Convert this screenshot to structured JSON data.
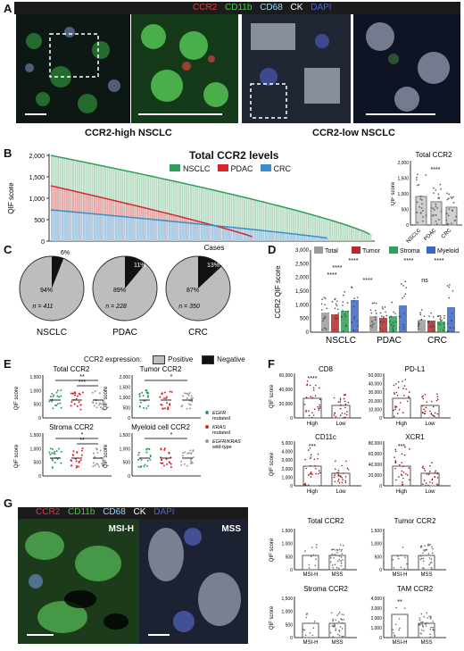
{
  "panels": {
    "A": "A",
    "B": "B",
    "C": "C",
    "D": "D",
    "E": "E",
    "F": "F",
    "G": "G"
  },
  "stainLegend": [
    {
      "label": "CCR2",
      "color": "#e23b3b"
    },
    {
      "label": "CD11b",
      "color": "#3fd23f"
    },
    {
      "label": "CD68",
      "color": "#9cd7f5"
    },
    {
      "label": "CK",
      "color": "#ffffff"
    },
    {
      "label": "DAPI",
      "color": "#4a63e8"
    }
  ],
  "panelA": {
    "left_caption": "CCR2-high NSCLC",
    "right_caption": "CCR2-low NSCLC"
  },
  "panelB": {
    "title": "Total CCR2 levels",
    "ylabel": "QIF score",
    "xlabel": "Cases",
    "yticks": [
      "2,000",
      "1,500",
      "1,000",
      "500",
      "0"
    ],
    "legend": [
      {
        "label": "NSCLC",
        "color": "#2e9f57"
      },
      {
        "label": "PDAC",
        "color": "#d7262b"
      },
      {
        "label": "CRC",
        "color": "#3a8ec9"
      }
    ],
    "inset": {
      "title": "Total CCR2",
      "ylabel": "QIF score",
      "yticks": [
        "2,000",
        "1,500",
        "1,000",
        "500",
        "0"
      ],
      "categories": [
        "NSCLC",
        "PDAC",
        "CRC"
      ],
      "sig": "****"
    }
  },
  "panelC": {
    "pies": [
      {
        "name": "NSCLC",
        "n": "n = 411",
        "pos": "94%",
        "neg": "6%",
        "neg_frac": 0.06
      },
      {
        "name": "PDAC",
        "n": "n = 228",
        "pos": "89%",
        "neg": "11%",
        "neg_frac": 0.11
      },
      {
        "name": "CRC",
        "n": "n = 350",
        "pos": "87%",
        "neg": "13%",
        "neg_frac": 0.13
      }
    ],
    "legend_title": "CCR2 expression:",
    "legend": [
      {
        "label": "Positive",
        "color": "#bdbdbd"
      },
      {
        "label": "Negative",
        "color": "#111111"
      }
    ]
  },
  "panelD": {
    "ylabel": "CCR2 QIF score",
    "yticks": [
      "3,000",
      "2,500",
      "2,000",
      "1,500",
      "1,000",
      "500",
      "0"
    ],
    "legend": [
      {
        "label": "Total",
        "color": "#9a9a9a"
      },
      {
        "label": "Tumor",
        "color": "#b52a2a"
      },
      {
        "label": "Stroma",
        "color": "#2e9f57"
      },
      {
        "label": "Myeloid",
        "color": "#3a66c9"
      }
    ],
    "groups": [
      "NSCLC",
      "PDAC",
      "CRC"
    ],
    "sig": [
      "****",
      "****",
      "****",
      "****",
      "****",
      "ns",
      "****"
    ]
  },
  "panelE": {
    "ylabel": "QIF score",
    "plots": [
      {
        "title": "Total CCR2",
        "sig": [
          "**",
          "***"
        ]
      },
      {
        "title": "Tumor CCR2",
        "sig": [
          "*"
        ]
      },
      {
        "title": "Stroma CCR2",
        "sig": [
          "*",
          "**"
        ]
      },
      {
        "title": "Myeloid cell CCR2",
        "sig": [
          "*"
        ]
      }
    ],
    "yticks_a": [
      "1,500",
      "1,000",
      "500",
      "0"
    ],
    "yticks_b": [
      "2,000",
      "1,500",
      "1,000",
      "500",
      "0"
    ],
    "legend": [
      {
        "label": "EGFR mutated",
        "color": "#2e9f57"
      },
      {
        "label": "KRAS mutated",
        "color": "#d7262b"
      },
      {
        "label": "EGFR/KRAS wild-type",
        "color": "#9a9a9a"
      }
    ]
  },
  "panelF": {
    "ylabel": "QIF score",
    "categories": [
      "High",
      "Low"
    ],
    "plots": [
      {
        "title": "CD8",
        "yticks": [
          "60,000",
          "40,000",
          "20,000",
          "0"
        ],
        "sig": "****"
      },
      {
        "title": "PD-L1",
        "yticks": [
          "50,000",
          "40,000",
          "30,000",
          "20,000",
          "10,000",
          "0"
        ],
        "sig": ""
      },
      {
        "title": "CD11c",
        "yticks": [
          "5,000",
          "4,000",
          "3,000",
          "2,000",
          "1,000",
          "0"
        ],
        "sig": "***"
      },
      {
        "title": "XCR1",
        "yticks": [
          "80,000",
          "60,000",
          "40,000",
          "20,000",
          "0"
        ],
        "sig": "***"
      }
    ]
  },
  "panelG": {
    "left_label": "MSI-H",
    "right_label": "MSS",
    "ylabel": "QIF score",
    "categories": [
      "MSI-H",
      "MSS"
    ],
    "plots": [
      {
        "title": "Total CCR2",
        "yticks": [
          "1,500",
          "1,000",
          "500",
          "0"
        ],
        "sig": ""
      },
      {
        "title": "Tumor CCR2",
        "yticks": [
          "1,500",
          "1,000",
          "500",
          "0"
        ],
        "sig": ""
      },
      {
        "title": "Stroma CCR2",
        "yticks": [
          "1,500",
          "1,000",
          "500",
          "0"
        ],
        "sig": ""
      },
      {
        "title": "TAM CCR2",
        "yticks": [
          "4,000",
          "3,000",
          "2,000",
          "1,000",
          "0"
        ],
        "sig": "**"
      }
    ]
  }
}
